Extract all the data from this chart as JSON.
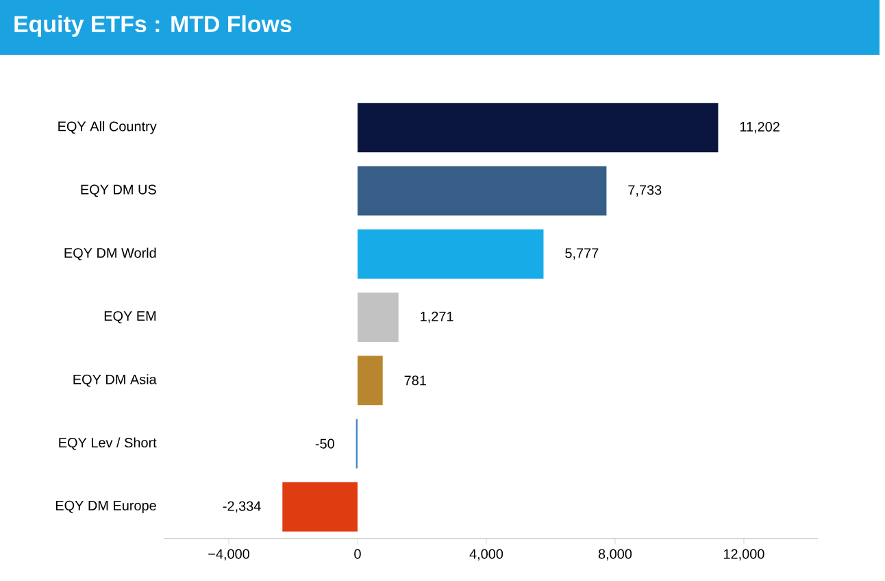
{
  "chart_data": {
    "type": "bar",
    "orientation": "horizontal",
    "title": "Equity ETFs : MTD Flows",
    "categories": [
      "EQY All Country",
      "EQY DM US",
      "EQY DM World",
      "EQY EM",
      "EQY DM Asia",
      "EQY Lev / Short",
      "EQY DM Europe"
    ],
    "values": [
      11202,
      7733,
      5777,
      1271,
      781,
      -50,
      -2334
    ],
    "value_labels": [
      "11,202",
      "7,733",
      "5,777",
      "1,271",
      "781",
      "-50",
      "-2,334"
    ],
    "colors": [
      "#0b1640",
      "#365e86",
      "#17abe8",
      "#c2c2c2",
      "#b8862e",
      "#4a86c5",
      "#e03c12"
    ],
    "xlim": [
      -6000,
      14300
    ],
    "xticks": [
      {
        "value": -4000,
        "label": "−4,000"
      },
      0,
      {
        "value": 4000,
        "label": "4,000"
      },
      {
        "value": 8000,
        "label": "8,000"
      },
      {
        "value": 12000,
        "label": "12,000"
      }
    ],
    "grid": false
  }
}
